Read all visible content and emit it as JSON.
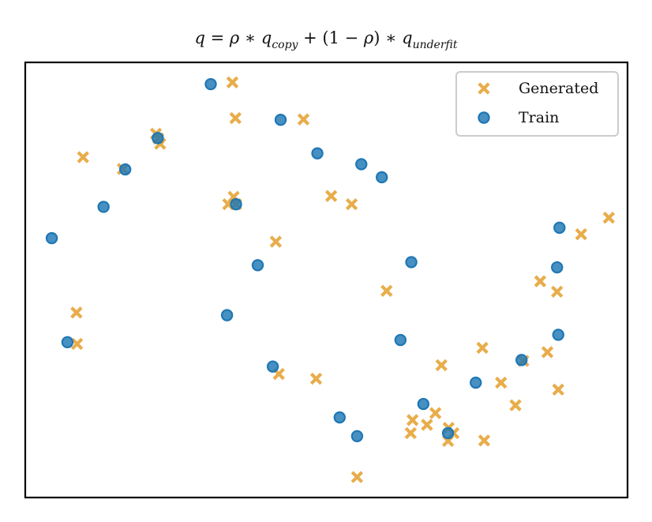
{
  "chart_data": {
    "type": "scatter",
    "title_parts": {
      "q": "q",
      "eq": " = ",
      "rho": "ρ",
      "op1": " ∗ ",
      "qcopy": "q",
      "copy_sub": "copy",
      "plus": " + (1 − ",
      "rho2": "ρ",
      "close": ") ∗ ",
      "qunder": "q",
      "under_sub": "underfit"
    },
    "xlabel": "",
    "ylabel": "",
    "xlim": [
      0,
      100
    ],
    "ylim": [
      0,
      100
    ],
    "grid": false,
    "axes_ticks": false,
    "legend_placement": "top-right",
    "series": [
      {
        "name": "Generated",
        "marker": "x",
        "color": "#E5A232",
        "points": [
          [
            34.4,
            95.4
          ],
          [
            34.9,
            87.2
          ],
          [
            46.2,
            86.9
          ],
          [
            22.1,
            82.5
          ],
          [
            22.4,
            81.3
          ],
          [
            21.7,
            83.6
          ],
          [
            9.6,
            78.2
          ],
          [
            16.2,
            75.5
          ],
          [
            34.6,
            69.1
          ],
          [
            33.7,
            67.4
          ],
          [
            35.0,
            67.4
          ],
          [
            50.8,
            69.3
          ],
          [
            54.2,
            67.4
          ],
          [
            41.6,
            58.8
          ],
          [
            92.3,
            60.5
          ],
          [
            96.9,
            64.3
          ],
          [
            85.5,
            49.7
          ],
          [
            88.3,
            47.3
          ],
          [
            60.0,
            47.5
          ],
          [
            8.5,
            42.5
          ],
          [
            8.6,
            35.3
          ],
          [
            75.9,
            34.4
          ],
          [
            69.1,
            30.4
          ],
          [
            42.1,
            28.4
          ],
          [
            48.3,
            27.3
          ],
          [
            86.7,
            33.4
          ],
          [
            82.7,
            31.4
          ],
          [
            79.0,
            26.4
          ],
          [
            88.5,
            24.8
          ],
          [
            81.4,
            21.2
          ],
          [
            68.1,
            19.4
          ],
          [
            64.3,
            17.8
          ],
          [
            66.7,
            16.7
          ],
          [
            70.3,
            16.0
          ],
          [
            71.1,
            14.8
          ],
          [
            64.0,
            14.8
          ],
          [
            70.2,
            13.0
          ],
          [
            76.2,
            13.1
          ],
          [
            55.1,
            4.7
          ]
        ]
      },
      {
        "name": "Train",
        "marker": "o",
        "color": "#1F77B4",
        "points": [
          [
            30.8,
            95.0
          ],
          [
            42.4,
            86.8
          ],
          [
            22.0,
            82.6
          ],
          [
            48.5,
            79.1
          ],
          [
            55.8,
            76.6
          ],
          [
            59.2,
            73.6
          ],
          [
            16.6,
            75.4
          ],
          [
            13.0,
            66.8
          ],
          [
            35.0,
            67.4
          ],
          [
            4.4,
            59.6
          ],
          [
            38.6,
            53.4
          ],
          [
            64.1,
            54.1
          ],
          [
            88.7,
            62.0
          ],
          [
            88.3,
            52.9
          ],
          [
            33.5,
            41.9
          ],
          [
            7.0,
            35.7
          ],
          [
            62.3,
            36.2
          ],
          [
            88.5,
            37.4
          ],
          [
            82.4,
            31.6
          ],
          [
            41.1,
            30.1
          ],
          [
            74.8,
            26.4
          ],
          [
            66.1,
            21.5
          ],
          [
            52.2,
            18.4
          ],
          [
            70.2,
            14.8
          ],
          [
            55.1,
            14.1
          ]
        ]
      }
    ]
  },
  "colors": {
    "axes": "#000000",
    "legend_border": "#cccccc"
  }
}
